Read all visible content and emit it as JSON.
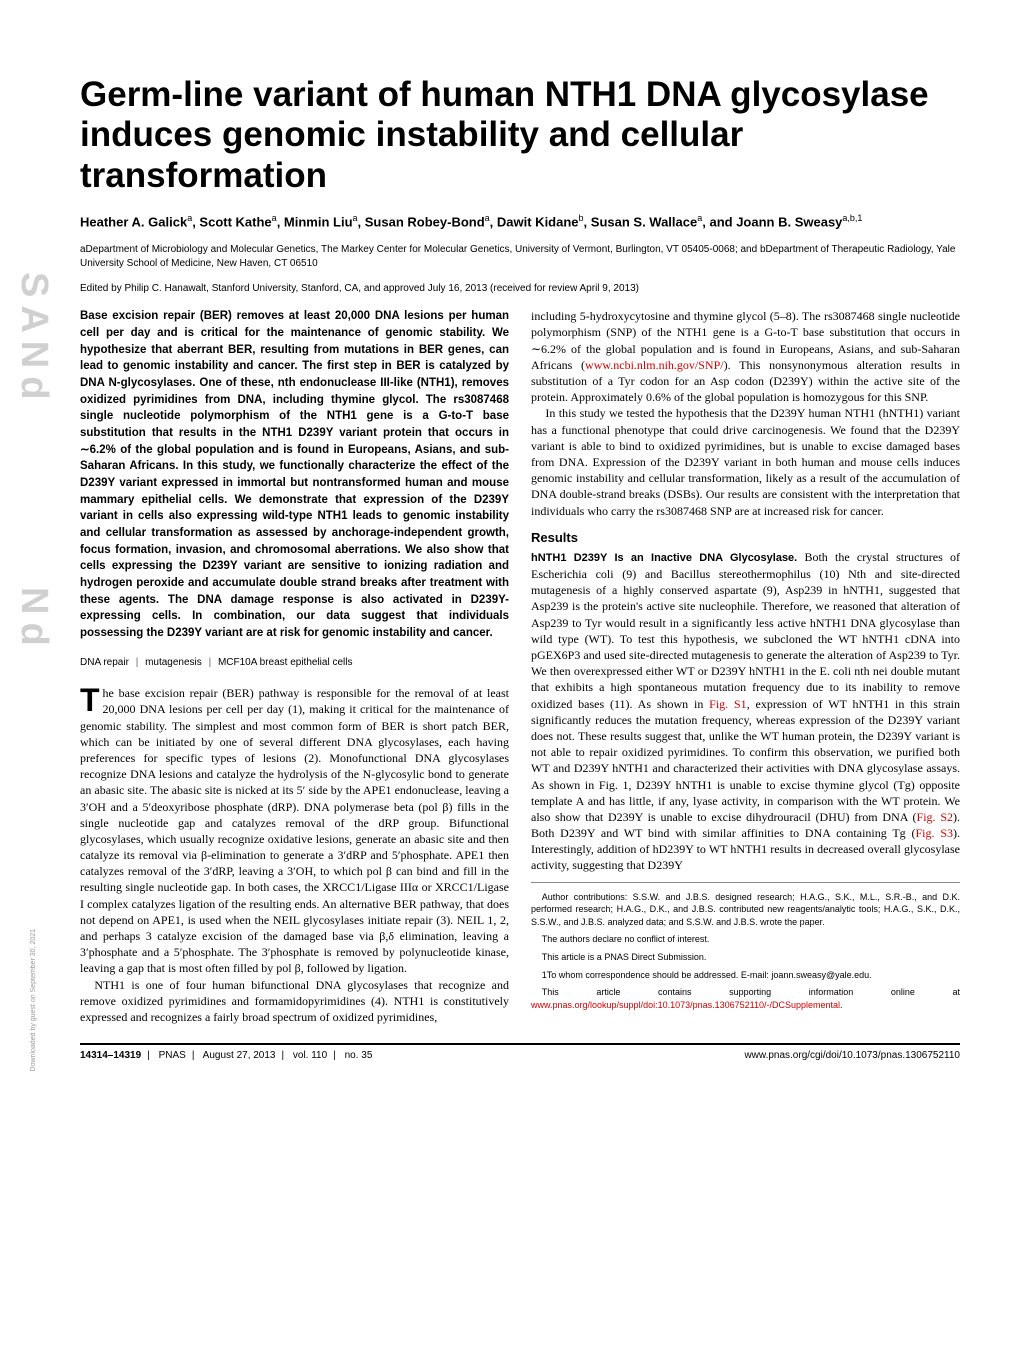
{
  "sidebar_text": "SANd",
  "sidebar_text2": "Nd",
  "download_note": "Downloaded by guest on September 30, 2021",
  "title": "Germ-line variant of human NTH1 DNA glycosylase induces genomic instability and cellular transformation",
  "authors_html": "Heather A. Galick|a|, Scott Kathe|a|, Minmin Liu|a|, Susan Robey-Bond|a|, Dawit Kidane|b|, Susan S. Wallace|a|, and Joann B. Sweasy|a,b,1|",
  "affiliations": "aDepartment of Microbiology and Molecular Genetics, The Markey Center for Molecular Genetics, University of Vermont, Burlington, VT 05405-0068; and bDepartment of Therapeutic Radiology, Yale University School of Medicine, New Haven, CT 06510",
  "edited": "Edited by Philip C. Hanawalt, Stanford University, Stanford, CA, and approved July 16, 2013 (received for review April 9, 2013)",
  "abstract": "Base excision repair (BER) removes at least 20,000 DNA lesions per human cell per day and is critical for the maintenance of genomic stability. We hypothesize that aberrant BER, resulting from mutations in BER genes, can lead to genomic instability and cancer. The first step in BER is catalyzed by DNA N-glycosylases. One of these, nth endonuclease III-like (NTH1), removes oxidized pyrimidines from DNA, including thymine glycol. The rs3087468 single nucleotide polymorphism of the NTH1 gene is a G-to-T base substitution that results in the NTH1 D239Y variant protein that occurs in ∼6.2% of the global population and is found in Europeans, Asians, and sub-Saharan Africans. In this study, we functionally characterize the effect of the D239Y variant expressed in immortal but nontransformed human and mouse mammary epithelial cells. We demonstrate that expression of the D239Y variant in cells also expressing wild-type NTH1 leads to genomic instability and cellular transformation as assessed by anchorage-independent growth, focus formation, invasion, and chromosomal aberrations. We also show that cells expressing the D239Y variant are sensitive to ionizing radiation and hydrogen peroxide and accumulate double strand breaks after treatment with these agents. The DNA damage response is also activated in D239Y-expressing cells. In combination, our data suggest that individuals possessing the D239Y variant are at risk for genomic instability and cancer.",
  "keywords": [
    "DNA repair",
    "mutagenesis",
    "MCF10A breast epithelial cells"
  ],
  "body": {
    "intro1": "The base excision repair (BER) pathway is responsible for the removal of at least 20,000 DNA lesions per cell per day (1), making it critical for the maintenance of genomic stability. The simplest and most common form of BER is short patch BER, which can be initiated by one of several different DNA glycosylases, each having preferences for specific types of lesions (2). Monofunctional DNA glycosylases recognize DNA lesions and catalyze the hydrolysis of the N-glycosylic bond to generate an abasic site. The abasic site is nicked at its 5′ side by the APE1 endonuclease, leaving a 3′OH and a 5′deoxyribose phosphate (dRP). DNA polymerase beta (pol β) fills in the single nucleotide gap and catalyzes removal of the dRP group. Bifunctional glycosylases, which usually recognize oxidative lesions, generate an abasic site and then catalyze its removal via β-elimination to generate a 3′dRP and 5′phosphate. APE1 then catalyzes removal of the 3′dRP, leaving a 3′OH, to which pol β can bind and fill in the resulting single nucleotide gap. In both cases, the XRCC1/Ligase IIIα or XRCC1/Ligase I complex catalyzes ligation of the resulting ends. An alternative BER pathway, that does not depend on APE1, is used when the NEIL glycosylases initiate repair (3). NEIL 1, 2, and perhaps 3 catalyze excision of the damaged base via β,δ elimination, leaving a 3′phosphate and a 5′phosphate. The 3′phosphate is removed by polynucleotide kinase, leaving a gap that is most often filled by pol β, followed by ligation.",
    "intro2": "NTH1 is one of four human bifunctional DNA glycosylases that recognize and remove oxidized pyrimidines and formamidopyrimidines (4). NTH1 is constitutively expressed and recognizes a fairly broad spectrum of oxidized pyrimidines, ",
    "col2a": "including 5-hydroxycytosine and thymine glycol (5–8). The rs3087468 single nucleotide polymorphism (SNP) of the NTH1 gene is a G-to-T base substitution that occurs in ∼6.2% of the global population and is found in Europeans, Asians, and sub-Saharan Africans (",
    "col2a_link": "www.ncbi.nlm.nih.gov/SNP/",
    "col2a_cont": "). This nonsynonymous alteration results in substitution of a Tyr codon for an Asp codon (D239Y) within the active site of the protein. Approximately 0.6% of the global population is homozygous for this SNP.",
    "col2b": "In this study we tested the hypothesis that the D239Y human NTH1 (hNTH1) variant has a functional phenotype that could drive carcinogenesis. We found that the D239Y variant is able to bind to oxidized pyrimidines, but is unable to excise damaged bases from DNA. Expression of the D239Y variant in both human and mouse cells induces genomic instability and cellular transformation, likely as a result of the accumulation of DNA double-strand breaks (DSBs). Our results are consistent with the interpretation that individuals who carry the rs3087468 SNP are at increased risk for cancer.",
    "results_head": "Results",
    "results_runin": "hNTH1 D239Y Is an Inactive DNA Glycosylase.",
    "results_body": " Both the crystal structures of Escherichia coli (9) and Bacillus stereothermophilus (10) Nth and site-directed mutagenesis of a highly conserved aspartate (9), Asp239 in hNTH1, suggested that Asp239 is the protein's active site nucleophile. Therefore, we reasoned that alteration of Asp239 to Tyr would result in a significantly less active hNTH1 DNA glycosylase than wild type (WT). To test this hypothesis, we subcloned the WT hNTH1 cDNA into pGEX6P3 and used site-directed mutagenesis to generate the alteration of Asp239 to Tyr. We then overexpressed either WT or D239Y hNTH1 in the E. coli nth nei double mutant that exhibits a high spontaneous mutation frequency due to its inability to remove oxidized bases (11). As shown in ",
    "figS1": "Fig. S1",
    "results_body2": ", expression of WT hNTH1 in this strain significantly reduces the mutation frequency, whereas expression of the D239Y variant does not. These results suggest that, unlike the WT human protein, the D239Y variant is not able to repair oxidized pyrimidines. To confirm this observation, we purified both WT and D239Y hNTH1 and characterized their activities with DNA glycosylase assays. As shown in Fig. 1, D239Y hNTH1 is unable to excise thymine glycol (Tg) opposite template A and has little, if any, lyase activity, in comparison with the WT protein. We also show that D239Y is unable to excise dihydrouracil (DHU) from DNA (",
    "figS2": "Fig. S2",
    "results_body3": "). Both D239Y and WT bind with similar affinities to DNA containing Tg (",
    "figS3": "Fig. S3",
    "results_body4": "). Interestingly, addition of hD239Y to WT hNTH1 results in decreased overall glycosylase activity, suggesting that D239Y"
  },
  "contrib": {
    "p1": "Author contributions: S.S.W. and J.B.S. designed research; H.A.G., S.K., M.L., S.R.-B., and D.K. performed research; H.A.G., D.K., and J.B.S. contributed new reagents/analytic tools; H.A.G., S.K., D.K., S.S.W., and J.B.S. analyzed data; and S.S.W. and J.B.S. wrote the paper.",
    "p2": "The authors declare no conflict of interest.",
    "p3": "This article is a PNAS Direct Submission.",
    "p4": "1To whom correspondence should be addressed. E-mail: joann.sweasy@yale.edu.",
    "p5a": "This article contains supporting information online at ",
    "p5link": "www.pnas.org/lookup/suppl/doi:10.1073/pnas.1306752110/-/DCSupplemental",
    "p5b": "."
  },
  "footer": {
    "pages": "14314–14319",
    "pnas": "PNAS",
    "date": "August 27, 2013",
    "vol": "vol. 110",
    "no": "no. 35",
    "doi": "www.pnas.org/cgi/doi/10.1073/pnas.1306752110"
  }
}
